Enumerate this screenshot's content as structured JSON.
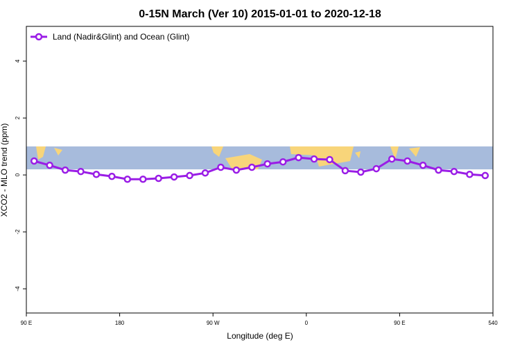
{
  "chart_data": {
    "type": "line",
    "title": "0-15N March (Ver 10)   2015-01-01 to 2020-12-18",
    "x_label": "Longitude (deg E)",
    "y_label": "XCO2 - MLO trend (ppm)",
    "x": [
      97.5,
      112.5,
      127.5,
      142.5,
      157.5,
      172.5,
      187.5,
      202.5,
      217.5,
      232.5,
      247.5,
      262.5,
      277.5,
      292.5,
      307.5,
      322.5,
      337.5,
      352.5,
      367.5,
      382.5,
      397.5,
      412.5,
      427.5,
      442.5,
      457.5,
      472.5,
      487.5,
      502.5,
      517.5,
      532.5
    ],
    "series": [
      {
        "name": "Land (Nadir&Glint) and Ocean (Glint)",
        "color": "#9a1de6",
        "values": [
          0.49,
          0.34,
          0.17,
          0.12,
          0.02,
          -0.05,
          -0.15,
          -0.15,
          -0.12,
          -0.07,
          -0.02,
          0.07,
          0.27,
          0.17,
          0.27,
          0.39,
          0.46,
          0.61,
          0.56,
          0.54,
          0.15,
          0.1,
          0.22,
          0.56,
          0.49,
          0.34,
          0.17,
          0.12,
          0.02,
          -0.02
        ]
      }
    ],
    "xlim": [
      90,
      540
    ],
    "ylim": [
      -4.85,
      5.22
    ],
    "xticks": [
      {
        "value": 90,
        "label": "90 E"
      },
      180,
      {
        "value": 270,
        "label": "90 W"
      },
      {
        "value": 360,
        "label": "0"
      },
      {
        "value": 450,
        "label": "90 E"
      },
      540
    ],
    "yticks": [
      -4,
      -2,
      0,
      2,
      4
    ],
    "legend": "top-left"
  }
}
